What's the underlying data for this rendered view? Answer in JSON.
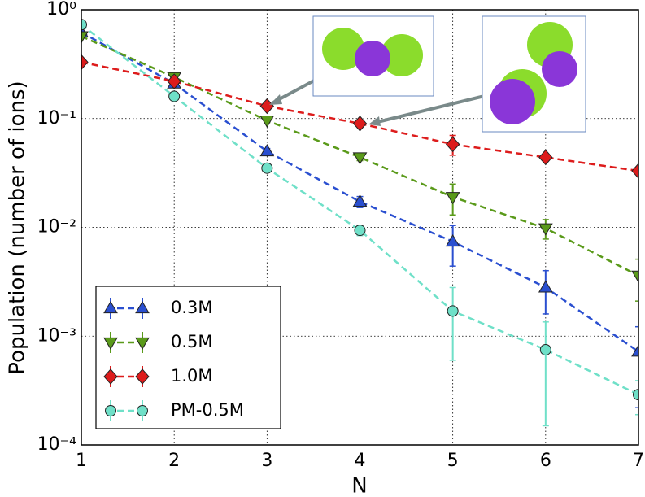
{
  "chart_data": {
    "type": "line",
    "x_label": "N",
    "y_label": "Population (number of ions)",
    "x": [
      1,
      2,
      3,
      4,
      5,
      6,
      7
    ],
    "xlim": [
      1,
      7
    ],
    "xticks": [
      1,
      2,
      3,
      4,
      5,
      6,
      7
    ],
    "ylim": [
      0.0001,
      1
    ],
    "yticks": [
      {
        "value": 1,
        "label": "10⁰"
      },
      {
        "value": 0.1,
        "label": "10⁻¹"
      },
      {
        "value": 0.01,
        "label": "10⁻²"
      },
      {
        "value": 0.001,
        "label": "10⁻³"
      },
      {
        "value": 0.0001,
        "label": "10⁻⁴"
      }
    ],
    "log_y": true,
    "grid": true,
    "legend": "lower left",
    "series": [
      {
        "name": "0.3M",
        "color": "#2a4fd0",
        "marker": "triangle-up",
        "values": [
          0.62,
          0.21,
          0.05,
          0.0172,
          0.0074,
          0.0028,
          0.00072
        ],
        "errors": [
          0.02,
          0.01,
          0.003,
          0.002,
          0.003,
          0.0012,
          0.0005
        ]
      },
      {
        "name": "0.5M",
        "color": "#5a9a1a",
        "marker": "triangle-down",
        "values": [
          0.57,
          0.24,
          0.096,
          0.044,
          0.019,
          0.0098,
          0.0036
        ],
        "errors": [
          0.02,
          0.01,
          0.004,
          0.003,
          0.006,
          0.002,
          0.0015
        ]
      },
      {
        "name": "1.0M",
        "color": "#dd1c1c",
        "marker": "diamond",
        "values": [
          0.33,
          0.22,
          0.13,
          0.09,
          0.058,
          0.044,
          0.033
        ],
        "errors": [
          0.01,
          0.01,
          0.005,
          0.004,
          0.012,
          0.003,
          0.002
        ]
      },
      {
        "name": "PM-0.5M",
        "color": "#6fe0c8",
        "marker": "circle",
        "values": [
          0.73,
          0.16,
          0.035,
          0.0094,
          0.0017,
          0.00075,
          0.00029
        ],
        "errors": [
          0.02,
          0.01,
          0.002,
          0.001,
          0.0011,
          0.0006,
          0.0001
        ]
      }
    ]
  }
}
